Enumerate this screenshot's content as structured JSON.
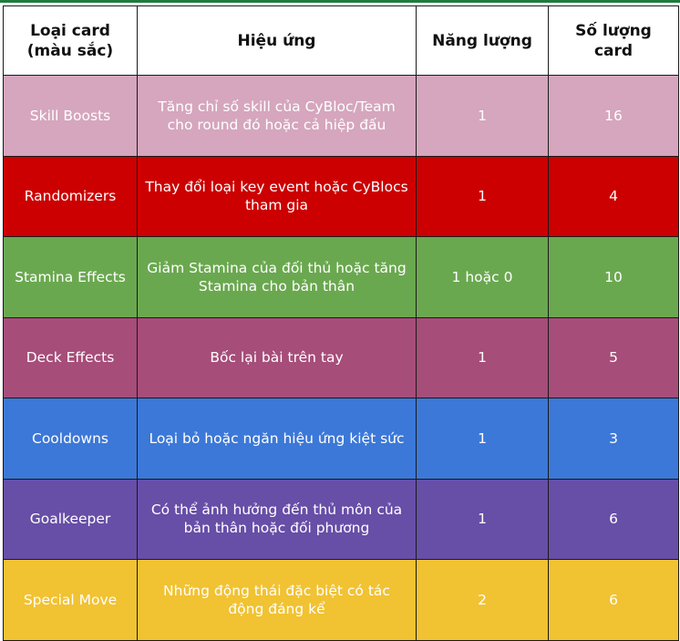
{
  "header": {
    "type": "Loại card\n(màu sắc)",
    "effect": "Hiệu ứng",
    "energy": "Năng lượng",
    "count": "Số lượng\ncard"
  },
  "rows": [
    {
      "type": "Skill Boosts",
      "effect": "Tăng chỉ số skill của CyBloc/Team cho round đó hoặc cả hiệp đấu",
      "energy": "1",
      "count": "16",
      "color": "#d5a6bd"
    },
    {
      "type": "Randomizers",
      "effect": "Thay đổi loại key event hoặc CyBlocs tham gia",
      "energy": "1",
      "count": "4",
      "color": "#cc0000"
    },
    {
      "type": "Stamina Effects",
      "effect": "Giảm Stamina của đối thủ hoặc tăng Stamina cho bản thân",
      "energy": "1 hoặc 0",
      "count": "10",
      "color": "#6aa84f"
    },
    {
      "type": "Deck Effects",
      "effect": "Bốc lại bài trên tay",
      "energy": "1",
      "count": "5",
      "color": "#a64d79"
    },
    {
      "type": "Cooldowns",
      "effect": "Loại bỏ hoặc ngăn hiệu ứng kiệt sức",
      "energy": "1",
      "count": "3",
      "color": "#3c78d8"
    },
    {
      "type": "Goalkeeper",
      "effect": "Có thể ảnh hưởng đến thủ môn của bản thân hoặc đối phương",
      "energy": "1",
      "count": "6",
      "color": "#674ea7"
    },
    {
      "type": "Special Move",
      "effect": "Những động thái đặc biệt có tác động đáng kể",
      "energy": "2",
      "count": "6",
      "color": "#f1c232"
    }
  ]
}
